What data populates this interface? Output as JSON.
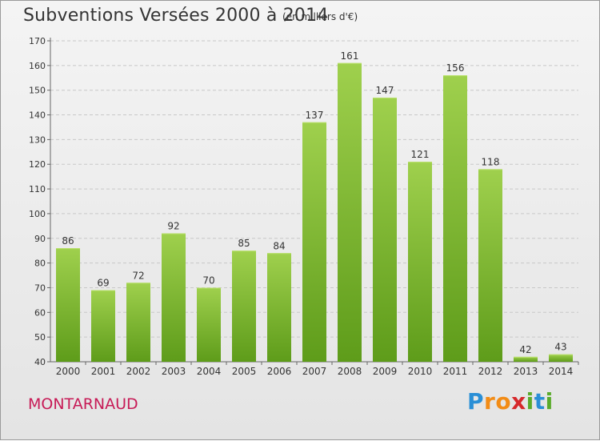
{
  "title": "Subventions Versées 2000 à 2014",
  "subtitle": "(en milliers d'€)",
  "commune": "MONTARNAUD",
  "logo": {
    "letters": [
      "P",
      "r",
      "o",
      "x",
      "i",
      "t",
      "i"
    ],
    "colors": [
      "#2a8fd6",
      "#f28c16",
      "#f28c16",
      "#d6282b",
      "#5aab2b",
      "#2a8fd6",
      "#5aab2b"
    ]
  },
  "colors": {
    "bar_top": "#9fd04d",
    "bar_bottom": "#5e9c1a",
    "grid": "#c8c8c8"
  },
  "chart_data": {
    "type": "bar",
    "categories": [
      "2000",
      "2001",
      "2002",
      "2003",
      "2004",
      "2005",
      "2006",
      "2007",
      "2008",
      "2009",
      "2010",
      "2011",
      "2012",
      "2013",
      "2014"
    ],
    "values": [
      86,
      69,
      72,
      92,
      70,
      85,
      84,
      137,
      161,
      147,
      121,
      156,
      118,
      42,
      43
    ],
    "yticks": [
      40,
      50,
      60,
      70,
      80,
      90,
      100,
      110,
      120,
      130,
      140,
      150,
      160,
      170
    ],
    "ylim": [
      40,
      170
    ],
    "grid": true
  }
}
